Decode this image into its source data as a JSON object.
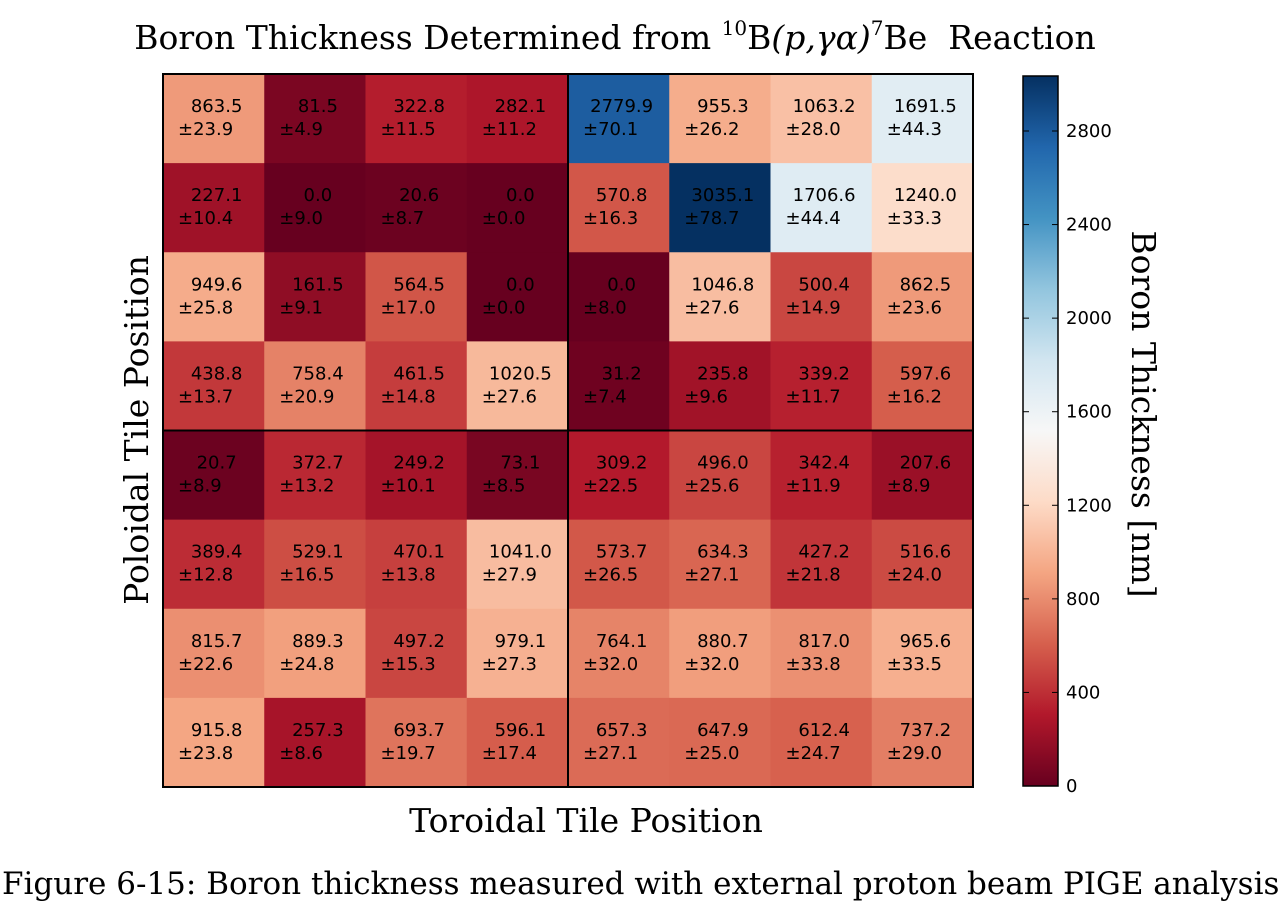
{
  "chart_data": {
    "type": "heatmap",
    "title_main": "Boron Thickness Determined from ",
    "title_sup_10": "10",
    "title_B": "B",
    "title_reaction": "(p,γα)",
    "title_sup_7": "7",
    "title_Be": "Be",
    "title_tail": "  Reaction",
    "xlabel": "Toroidal Tile Position",
    "ylabel": "Poloidal Tile Position",
    "colorbar_label": "Boron Thickness [nm]",
    "colorbar_range": [
      0,
      3035.1
    ],
    "colorbar_ticks": [
      "0",
      "400",
      "800",
      "1200",
      "1600",
      "2000",
      "2400",
      "2800"
    ],
    "colorbar_tick_values": [
      0,
      400,
      800,
      1200,
      1600,
      2000,
      2400,
      2800
    ],
    "colormap": "RdBu",
    "rows": [
      [
        {
          "v": "863.5",
          "e": "±23.9"
        },
        {
          "v": "81.5",
          "e": "±4.9"
        },
        {
          "v": "322.8",
          "e": "±11.5"
        },
        {
          "v": "282.1",
          "e": "±11.2"
        },
        {
          "v": "2779.9",
          "e": "±70.1"
        },
        {
          "v": "955.3",
          "e": "±26.2"
        },
        {
          "v": "1063.2",
          "e": "±28.0"
        },
        {
          "v": "1691.5",
          "e": "±44.3"
        }
      ],
      [
        {
          "v": "227.1",
          "e": "±10.4"
        },
        {
          "v": "0.0",
          "e": "±9.0"
        },
        {
          "v": "20.6",
          "e": "±8.7"
        },
        {
          "v": "0.0",
          "e": "±0.0"
        },
        {
          "v": "570.8",
          "e": "±16.3"
        },
        {
          "v": "3035.1",
          "e": "±78.7"
        },
        {
          "v": "1706.6",
          "e": "±44.4"
        },
        {
          "v": "1240.0",
          "e": "±33.3"
        }
      ],
      [
        {
          "v": "949.6",
          "e": "±25.8"
        },
        {
          "v": "161.5",
          "e": "±9.1"
        },
        {
          "v": "564.5",
          "e": "±17.0"
        },
        {
          "v": "0.0",
          "e": "±0.0"
        },
        {
          "v": "0.0",
          "e": "±8.0"
        },
        {
          "v": "1046.8",
          "e": "±27.6"
        },
        {
          "v": "500.4",
          "e": "±14.9"
        },
        {
          "v": "862.5",
          "e": "±23.6"
        }
      ],
      [
        {
          "v": "438.8",
          "e": "±13.7"
        },
        {
          "v": "758.4",
          "e": "±20.9"
        },
        {
          "v": "461.5",
          "e": "±14.8"
        },
        {
          "v": "1020.5",
          "e": "±27.6"
        },
        {
          "v": "31.2",
          "e": "±7.4"
        },
        {
          "v": "235.8",
          "e": "±9.6"
        },
        {
          "v": "339.2",
          "e": "±11.7"
        },
        {
          "v": "597.6",
          "e": "±16.2"
        }
      ],
      [
        {
          "v": "20.7",
          "e": "±8.9"
        },
        {
          "v": "372.7",
          "e": "±13.2"
        },
        {
          "v": "249.2",
          "e": "±10.1"
        },
        {
          "v": "73.1",
          "e": "±8.5"
        },
        {
          "v": "309.2",
          "e": "±22.5"
        },
        {
          "v": "496.0",
          "e": "±25.6"
        },
        {
          "v": "342.4",
          "e": "±11.9"
        },
        {
          "v": "207.6",
          "e": "±8.9"
        }
      ],
      [
        {
          "v": "389.4",
          "e": "±12.8"
        },
        {
          "v": "529.1",
          "e": "±16.5"
        },
        {
          "v": "470.1",
          "e": "±13.8"
        },
        {
          "v": "1041.0",
          "e": "±27.9"
        },
        {
          "v": "573.7",
          "e": "±26.5"
        },
        {
          "v": "634.3",
          "e": "±27.1"
        },
        {
          "v": "427.2",
          "e": "±21.8"
        },
        {
          "v": "516.6",
          "e": "±24.0"
        }
      ],
      [
        {
          "v": "815.7",
          "e": "±22.6"
        },
        {
          "v": "889.3",
          "e": "±24.8"
        },
        {
          "v": "497.2",
          "e": "±15.3"
        },
        {
          "v": "979.1",
          "e": "±27.3"
        },
        {
          "v": "764.1",
          "e": "±32.0"
        },
        {
          "v": "880.7",
          "e": "±32.0"
        },
        {
          "v": "817.0",
          "e": "±33.8"
        },
        {
          "v": "965.6",
          "e": "±33.5"
        }
      ],
      [
        {
          "v": "915.8",
          "e": "±23.8"
        },
        {
          "v": "257.3",
          "e": "±8.6"
        },
        {
          "v": "693.7",
          "e": "±19.7"
        },
        {
          "v": "596.1",
          "e": "±17.4"
        },
        {
          "v": "657.3",
          "e": "±27.1"
        },
        {
          "v": "647.9",
          "e": "±25.0"
        },
        {
          "v": "612.4",
          "e": "±24.7"
        },
        {
          "v": "737.2",
          "e": "±29.0"
        }
      ]
    ]
  },
  "caption": "Figure 6-15: Boron thickness measured with external proton beam PIGE analysis"
}
